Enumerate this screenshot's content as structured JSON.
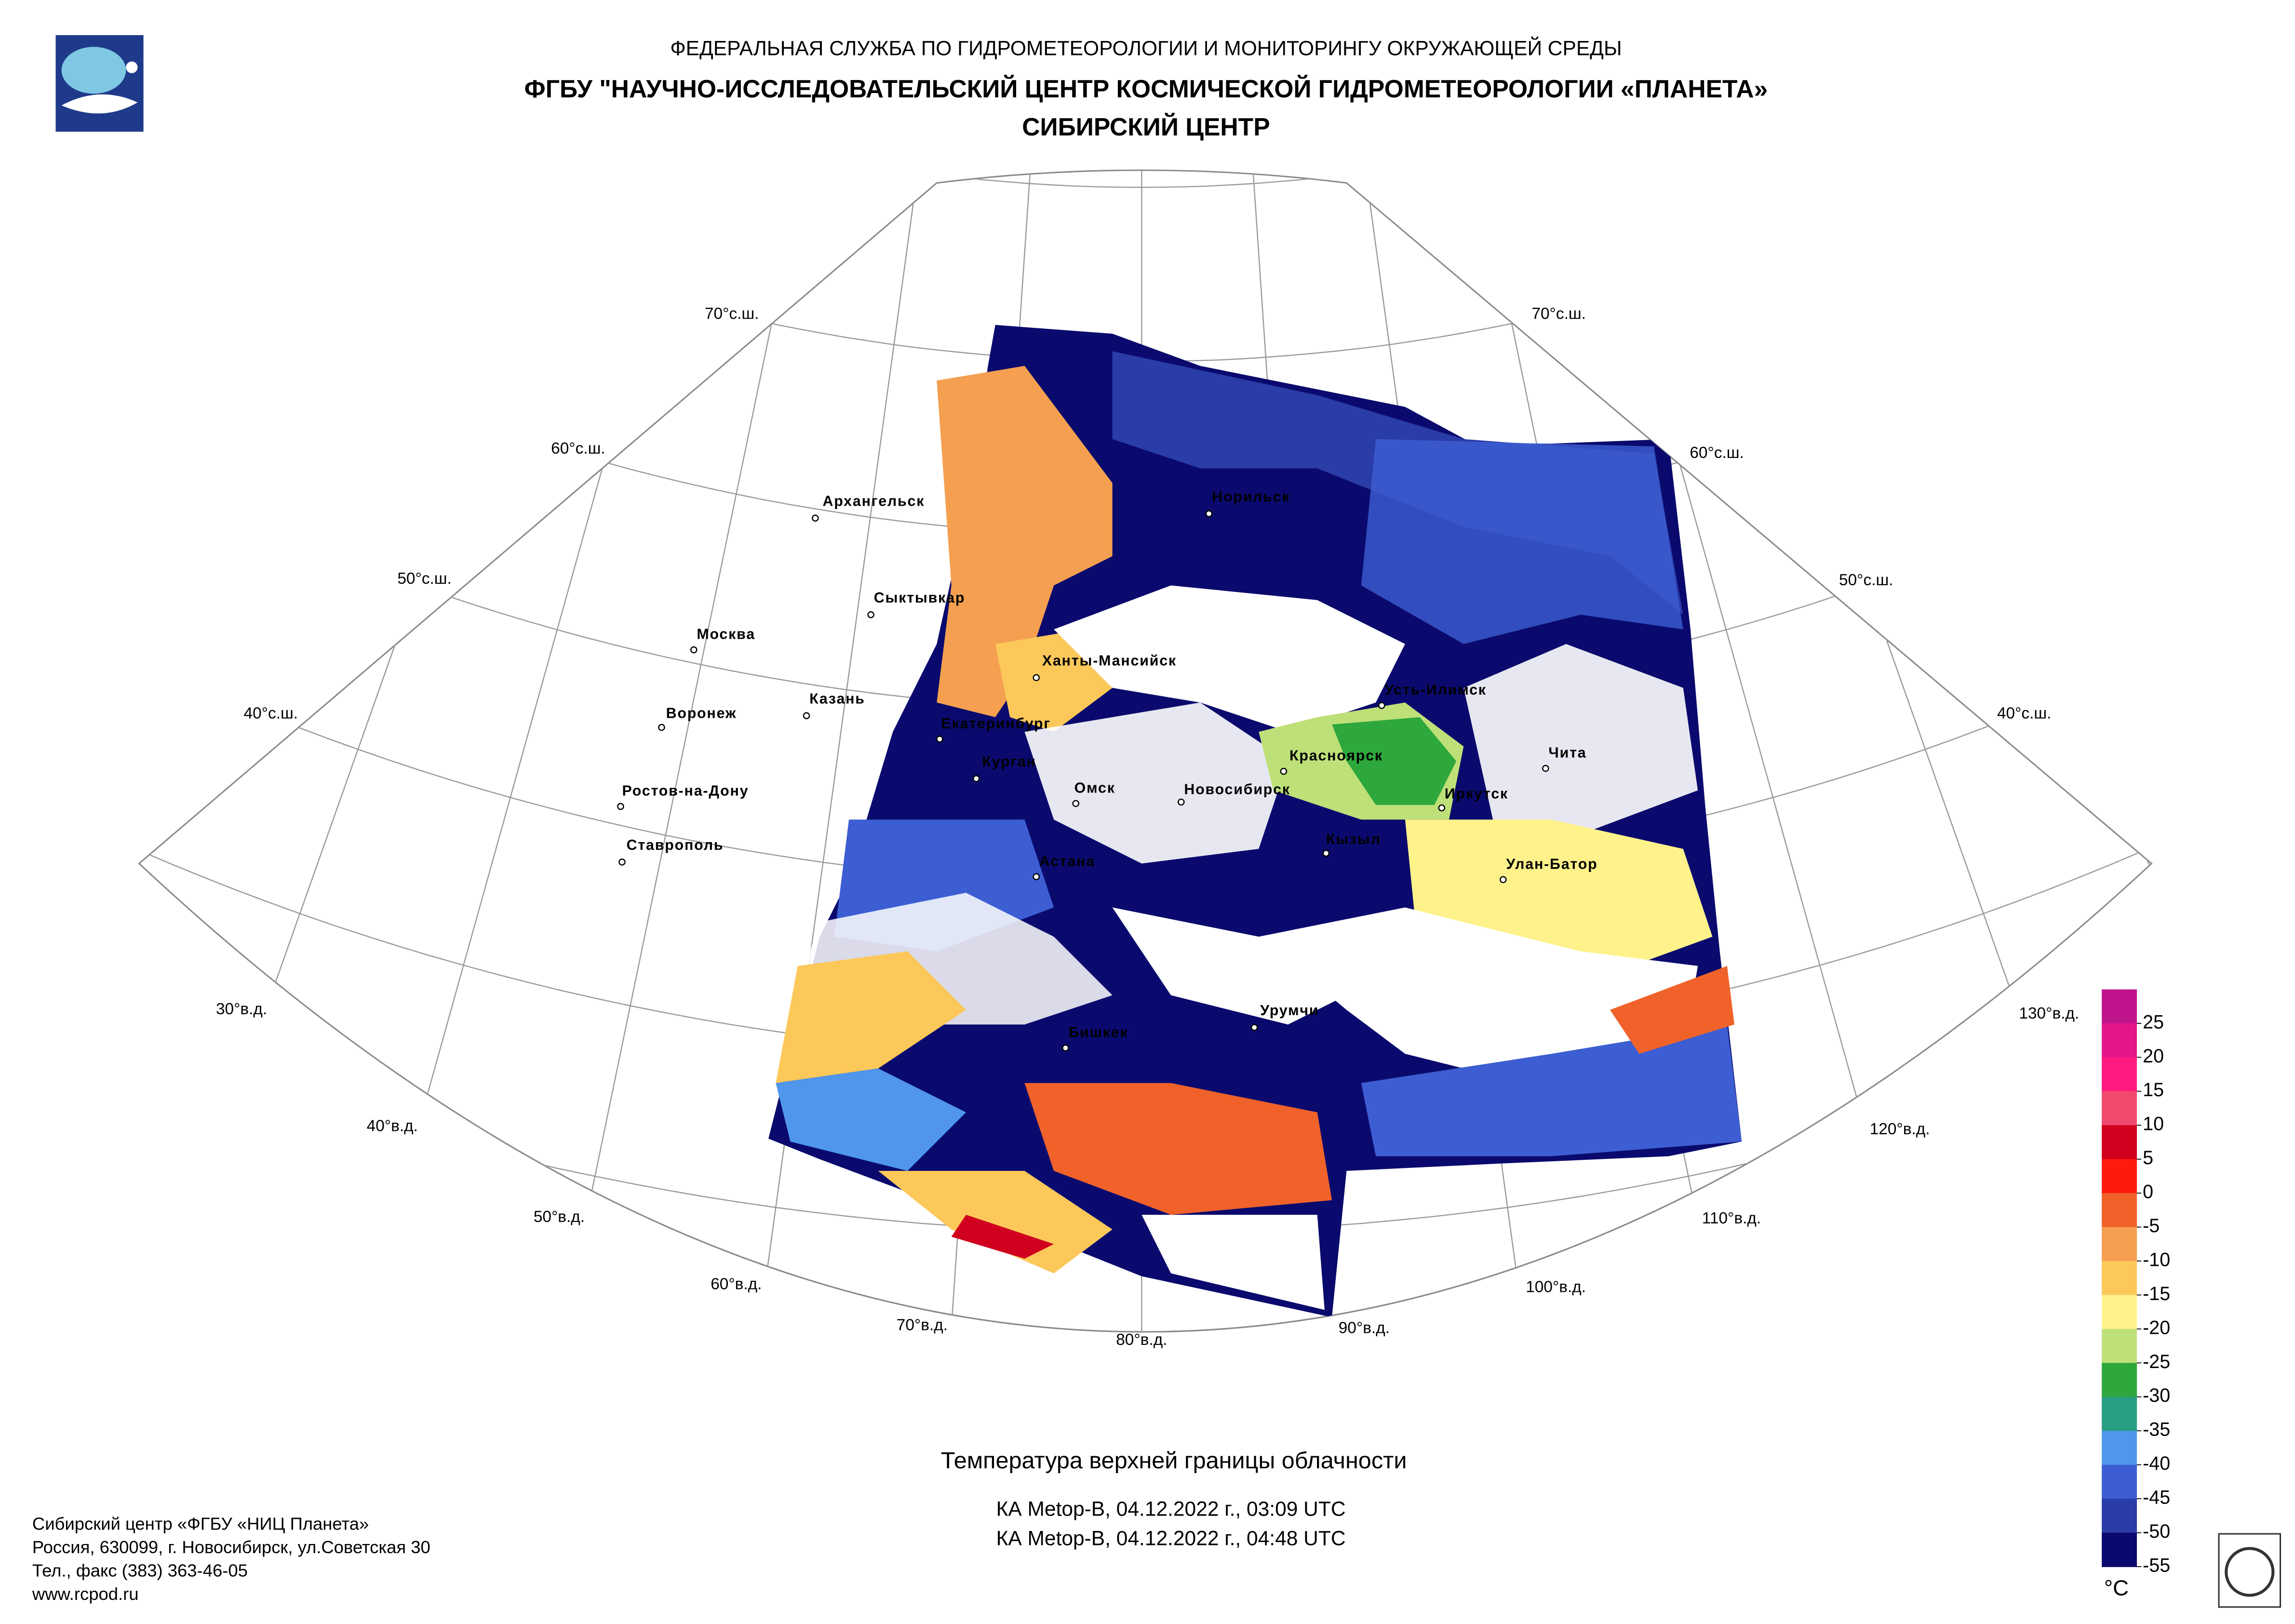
{
  "header": {
    "agency": "ФЕДЕРАЛЬНАЯ СЛУЖБА ПО ГИДРОМЕТЕОРОЛОГИИ И МОНИТОРИНГУ ОКРУЖАЮЩЕЙ СРЕДЫ",
    "organization": "ФГБУ \"НАУЧНО-ИССЛЕДОВАТЕЛЬСКИЙ ЦЕНТР КОСМИЧЕСКОЙ ГИДРОМЕТЕОРОЛОГИИ «ПЛАНЕТА»",
    "center": "СИБИРСКИЙ ЦЕНТР"
  },
  "map": {
    "lat_labels": [
      "70°с.ш.",
      "60°с.ш.",
      "50°с.ш.",
      "40°с.ш."
    ],
    "lon_labels": [
      "30°в.д.",
      "40°в.д.",
      "50°в.д.",
      "60°в.д.",
      "70°в.д.",
      "80°в.д.",
      "90°в.д.",
      "100°в.д.",
      "110°в.д.",
      "120°в.д.",
      "130°в.д."
    ],
    "cities": [
      "Архангельск",
      "Сыктывкар",
      "Москва",
      "Воронеж",
      "Казань",
      "Ростов-на-Дону",
      "Ставрополь",
      "Норильск",
      "Ханты-Мансийск",
      "Екатеринбург",
      "Курган",
      "Омск",
      "Новосибирск",
      "Астана",
      "Красноярск",
      "Усть-Илимск",
      "Иркутск",
      "Чита",
      "Кызыл",
      "Улан-Батор",
      "Урумчи",
      "Бишкек"
    ]
  },
  "legend": {
    "unit": "°C",
    "colors": [
      "#c0148c",
      "#e4168a",
      "#ff1a80",
      "#f04a6e",
      "#d0001e",
      "#ff1a10",
      "#f0622a",
      "#f4a050",
      "#fcc85a",
      "#fff28a",
      "#bee078",
      "#2ea83c",
      "#289e82",
      "#5096ec",
      "#3c5ed2",
      "#2a3ca8",
      "#0a0a6e"
    ],
    "ticks": [
      25,
      20,
      15,
      10,
      5,
      0,
      -5,
      -10,
      -15,
      -20,
      -25,
      -30,
      -35,
      -40,
      -45,
      -50,
      -55
    ]
  },
  "caption": {
    "title": "Температура верхней границы облачности",
    "passes": [
      "КА Metop-B, 04.12.2022 г., 03:09 UTC",
      "КА Metop-B, 04.12.2022 г., 04:48 UTC"
    ]
  },
  "footer": [
    "Сибирский центр «ФГБУ «НИЦ Планета»",
    "Россия, 630099, г. Новосибирск, ул.Советская 30",
    "Тел., факс (383) 363-46-05",
    "www.rcpod.ru"
  ]
}
